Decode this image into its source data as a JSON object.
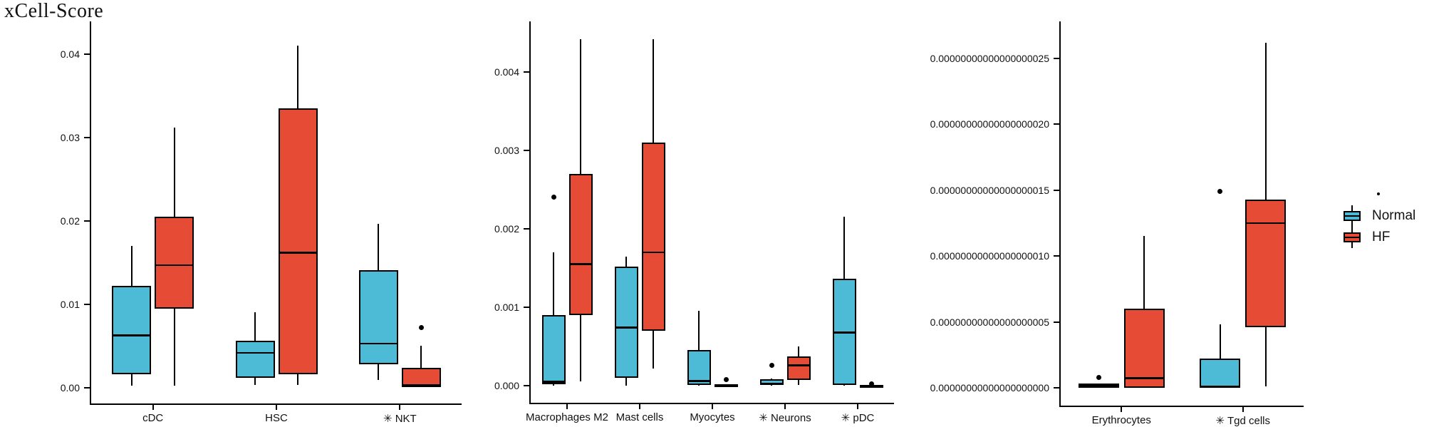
{
  "title": "xCell-Score",
  "colors": {
    "normal": "#4DBBD5",
    "hf": "#E64B35",
    "stroke": "#000000",
    "background": "#FFFFFF"
  },
  "legend": {
    "position": "right-middle",
    "items": [
      {
        "label": "Normal",
        "color": "#4DBBD5"
      },
      {
        "label": "HF",
        "color": "#E64B35"
      }
    ]
  },
  "chart_data": [
    {
      "type": "box",
      "title": "",
      "xlabel": "",
      "ylabel": "",
      "grid": false,
      "ylim": [
        -0.0019,
        0.0439
      ],
      "yticks": [
        0.0,
        0.01,
        0.02,
        0.03,
        0.04
      ],
      "ytick_labels": [
        "0.00",
        "0.01",
        "0.02",
        "0.03",
        "0.04"
      ],
      "categories": [
        "cDC",
        "HSC",
        "✳ NKT"
      ],
      "series": [
        {
          "name": "Normal",
          "boxes": [
            {
              "min": 0.0002,
              "q1": 0.0016,
              "med": 0.0063,
              "q3": 0.0122,
              "max": 0.017,
              "outliers": []
            },
            {
              "min": 0.0003,
              "q1": 0.0012,
              "med": 0.0042,
              "q3": 0.0056,
              "max": 0.009,
              "outliers": []
            },
            {
              "min": 0.0009,
              "q1": 0.0028,
              "med": 0.0053,
              "q3": 0.0141,
              "max": 0.0196,
              "outliers": []
            }
          ]
        },
        {
          "name": "HF",
          "boxes": [
            {
              "min": 0.0002,
              "q1": 0.0095,
              "med": 0.0147,
              "q3": 0.0205,
              "max": 0.0312,
              "outliers": []
            },
            {
              "min": 0.0003,
              "q1": 0.0016,
              "med": 0.0162,
              "q3": 0.0335,
              "max": 0.041,
              "outliers": []
            },
            {
              "min": 0.0001,
              "q1": 0.0001,
              "med": 0.0003,
              "q3": 0.0024,
              "max": 0.005,
              "outliers": [
                0.0072
              ]
            }
          ]
        }
      ]
    },
    {
      "type": "box",
      "title": "",
      "xlabel": "",
      "ylabel": "",
      "grid": false,
      "ylim": [
        -0.00022,
        0.004645
      ],
      "yticks": [
        0.0,
        0.001,
        0.002,
        0.003,
        0.004
      ],
      "ytick_labels": [
        "0.000",
        "0.001",
        "0.002",
        "0.003",
        "0.004"
      ],
      "categories": [
        "Macrophages M2",
        "Mast cells",
        "Myocytes",
        "✳ Neurons",
        "✳ pDC"
      ],
      "series": [
        {
          "name": "Normal",
          "boxes": [
            {
              "min": 0.0,
              "q1": 2e-05,
              "med": 5e-05,
              "q3": 0.0009,
              "max": 0.0017,
              "outliers": [
                0.0024
              ]
            },
            {
              "min": 0.0,
              "q1": 0.0001,
              "med": 0.00074,
              "q3": 0.00152,
              "max": 0.00164,
              "outliers": []
            },
            {
              "min": 0.0,
              "q1": 1e-05,
              "med": 6e-05,
              "q3": 0.00045,
              "max": 0.00095,
              "outliers": []
            },
            {
              "min": 0.0,
              "q1": 1e-05,
              "med": 3e-05,
              "q3": 8e-05,
              "max": 9e-05,
              "outliers": [
                0.00026
              ]
            },
            {
              "min": 0.0,
              "q1": 1e-05,
              "med": 0.00068,
              "q3": 0.00136,
              "max": 0.00215,
              "outliers": []
            }
          ]
        },
        {
          "name": "HF",
          "boxes": [
            {
              "min": 5e-05,
              "q1": 0.0009,
              "med": 0.00155,
              "q3": 0.0027,
              "max": 0.00442,
              "outliers": []
            },
            {
              "min": 0.00022,
              "q1": 0.0007,
              "med": 0.0017,
              "q3": 0.0031,
              "max": 0.00442,
              "outliers": []
            },
            {
              "min": 0.0,
              "q1": 0.0,
              "med": 1e-05,
              "q3": 2e-05,
              "max": 2e-05,
              "outliers": [
                8e-05
              ]
            },
            {
              "min": 1e-05,
              "q1": 7e-05,
              "med": 0.00026,
              "q3": 0.00037,
              "max": 0.0005,
              "outliers": []
            },
            {
              "min": 0.0,
              "q1": 0.0,
              "med": 0.0,
              "q3": 1e-05,
              "max": 1e-05,
              "outliers": [
                2e-05
              ]
            }
          ]
        }
      ]
    },
    {
      "type": "box",
      "title": "",
      "xlabel": "",
      "ylabel": "",
      "grid": false,
      "ylim": [
        -1.35e-20,
        2.78e-19
      ],
      "yticks": [
        0.0,
        5e-20,
        1e-19,
        1.5e-19,
        2e-19,
        2.5e-19
      ],
      "ytick_labels": [
        "0.00000000000000000000",
        "0.00000000000000000005",
        "0.00000000000000000010",
        "0.00000000000000000015",
        "0.00000000000000000020",
        "0.00000000000000000025"
      ],
      "categories": [
        "Erythrocytes",
        "✳ Tgd cells"
      ],
      "series": [
        {
          "name": "Normal",
          "boxes": [
            {
              "min": 0.0,
              "q1": 0.0,
              "med": 1.5e-21,
              "q3": 3e-21,
              "max": 3e-21,
              "outliers": [
                8e-21
              ]
            },
            {
              "min": 0.0,
              "q1": 0.0,
              "med": 1e-21,
              "q3": 2.2e-20,
              "max": 4.8e-20,
              "outliers": [
                1.49e-19
              ]
            }
          ]
        },
        {
          "name": "HF",
          "boxes": [
            {
              "min": 0.0,
              "q1": 0.0,
              "med": 7.5e-21,
              "q3": 6e-20,
              "max": 1.15e-19,
              "outliers": []
            },
            {
              "min": 1e-21,
              "q1": 4.6e-20,
              "med": 1.25e-19,
              "q3": 1.43e-19,
              "max": 2.62e-19,
              "outliers": []
            }
          ]
        }
      ]
    }
  ]
}
